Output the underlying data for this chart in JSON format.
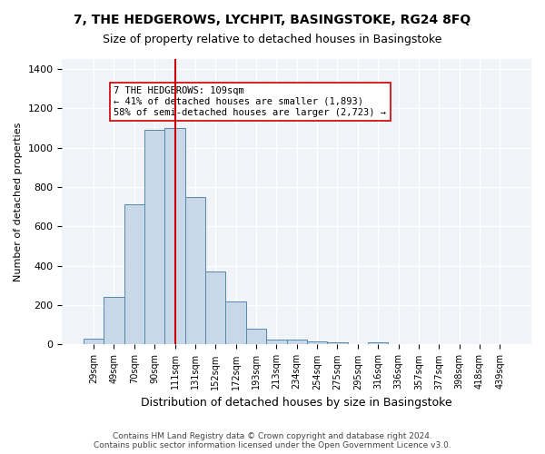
{
  "title": "7, THE HEDGEROWS, LYCHPIT, BASINGSTOKE, RG24 8FQ",
  "subtitle": "Size of property relative to detached houses in Basingstoke",
  "xlabel": "Distribution of detached houses by size in Basingstoke",
  "ylabel": "Number of detached properties",
  "bar_color": "#c8d8e8",
  "bar_edge_color": "#5588aa",
  "categories": [
    "29sqm",
    "49sqm",
    "70sqm",
    "90sqm",
    "111sqm",
    "131sqm",
    "152sqm",
    "172sqm",
    "193sqm",
    "213sqm",
    "234sqm",
    "254sqm",
    "275sqm",
    "295sqm",
    "316sqm",
    "336sqm",
    "357sqm",
    "377sqm",
    "398sqm",
    "418sqm",
    "439sqm"
  ],
  "values": [
    30,
    240,
    710,
    1090,
    1100,
    750,
    370,
    220,
    80,
    25,
    25,
    15,
    10,
    0,
    10,
    0,
    0,
    0,
    0,
    0,
    0
  ],
  "vline_x": 4,
  "vline_color": "#cc0000",
  "annotation_text": "7 THE HEDGEROWS: 109sqm\n← 41% of detached houses are smaller (1,893)\n58% of semi-detached houses are larger (2,723) →",
  "annotation_box_color": "white",
  "annotation_box_edge_color": "#cc0000",
  "ylim": [
    0,
    1450
  ],
  "yticks": [
    0,
    200,
    400,
    600,
    800,
    1000,
    1200,
    1400
  ],
  "footer": "Contains HM Land Registry data © Crown copyright and database right 2024.\nContains public sector information licensed under the Open Government Licence v3.0.",
  "background_color": "#f0f4f8",
  "grid_color": "white"
}
